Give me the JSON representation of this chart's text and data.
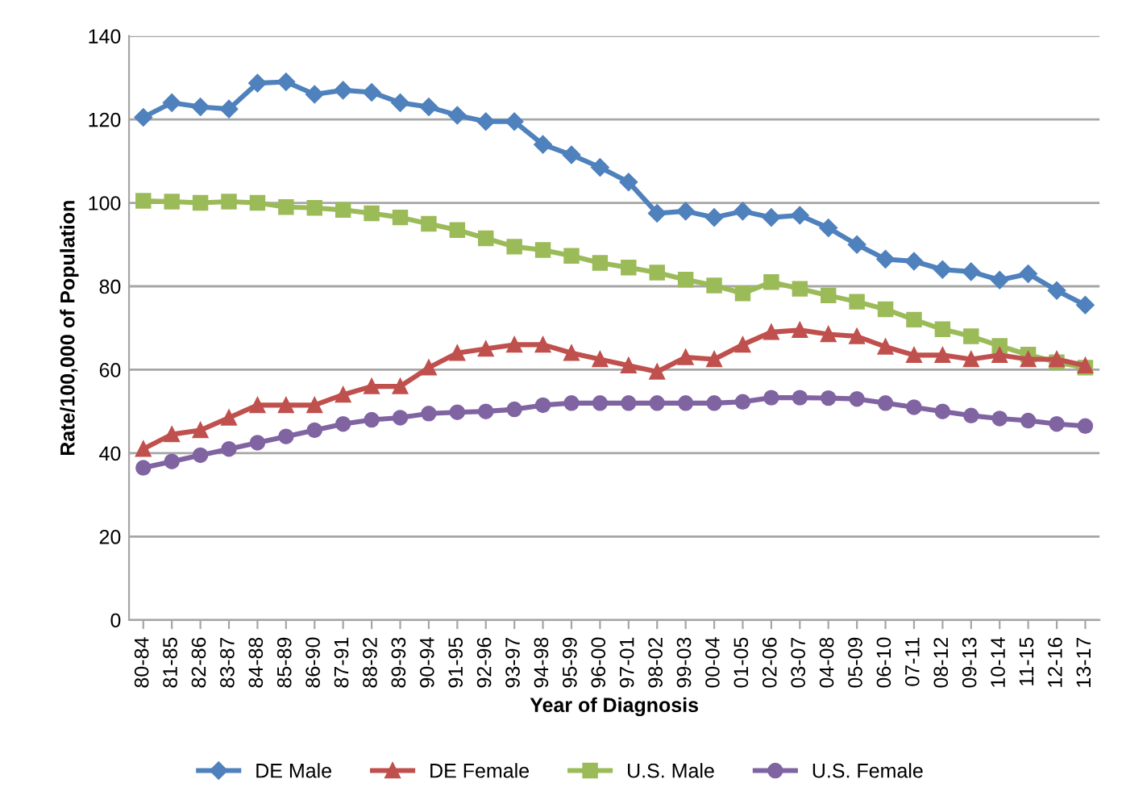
{
  "chart_data": {
    "type": "line",
    "xlabel": "Year of Diagnosis",
    "ylabel": "Rate/100,000 of Population",
    "categories": [
      "80-84",
      "81-85",
      "82-86",
      "83-87",
      "84-88",
      "85-89",
      "86-90",
      "87-91",
      "88-92",
      "89-93",
      "90-94",
      "91-95",
      "92-96",
      "93-97",
      "94-98",
      "95-99",
      "96-00",
      "97-01",
      "98-02",
      "99-03",
      "00-04",
      "01-05",
      "02-06",
      "03-07",
      "04-08",
      "05-09",
      "06-10",
      "07-11",
      "08-12",
      "09-13",
      "10-14",
      "11-15",
      "12-16",
      "13-17"
    ],
    "series": [
      {
        "name": "DE Male",
        "color": "#4f81bd",
        "marker": "diamond",
        "values": [
          120.5,
          124,
          123,
          122.5,
          128.7,
          129,
          126,
          127,
          126.5,
          124,
          123,
          121,
          119.5,
          119.5,
          114,
          111.5,
          108.5,
          105,
          97.5,
          98,
          96.5,
          98,
          96.5,
          97,
          94,
          90,
          86.5,
          86,
          84,
          83.5,
          81.5,
          83,
          79,
          75.5
        ]
      },
      {
        "name": "DE Female",
        "color": "#c0504d",
        "marker": "triangle",
        "values": [
          41,
          44.5,
          45.5,
          48.5,
          51.5,
          51.5,
          51.5,
          54,
          56,
          56,
          60.5,
          64,
          65,
          66,
          66,
          64,
          62.5,
          61,
          59.5,
          63,
          62.5,
          66,
          69,
          69.5,
          68.5,
          68,
          65.5,
          63.5,
          63.5,
          62.5,
          63.5,
          62.5,
          62.5,
          61
        ]
      },
      {
        "name": "U.S. Male",
        "color": "#9bbb59",
        "marker": "square",
        "values": [
          100.5,
          100.3,
          100,
          100.3,
          100,
          99,
          98.8,
          98.3,
          97.5,
          96.5,
          95,
          93.5,
          91.5,
          89.5,
          88.7,
          87.3,
          85.6,
          84.5,
          83.3,
          81.6,
          80.2,
          78.3,
          81,
          79.4,
          77.8,
          76.3,
          74.5,
          72,
          69.7,
          68,
          65.7,
          63.6,
          61.8,
          60.5
        ]
      },
      {
        "name": "U.S. Female",
        "color": "#8064a2",
        "marker": "circle",
        "values": [
          36.5,
          38,
          39.5,
          41,
          42.5,
          44,
          45.5,
          47,
          48,
          48.5,
          49.5,
          49.8,
          50,
          50.5,
          51.5,
          52,
          52,
          52,
          52,
          52,
          52,
          52.3,
          53.3,
          53.3,
          53.2,
          53,
          52,
          51,
          50,
          49,
          48.3,
          47.8,
          47,
          46.5
        ]
      }
    ],
    "ylim": [
      0,
      140
    ],
    "yticks": [
      0,
      20,
      40,
      60,
      80,
      100,
      120,
      140
    ],
    "grid": "y",
    "legend": "bottom",
    "line_style": "solid"
  }
}
